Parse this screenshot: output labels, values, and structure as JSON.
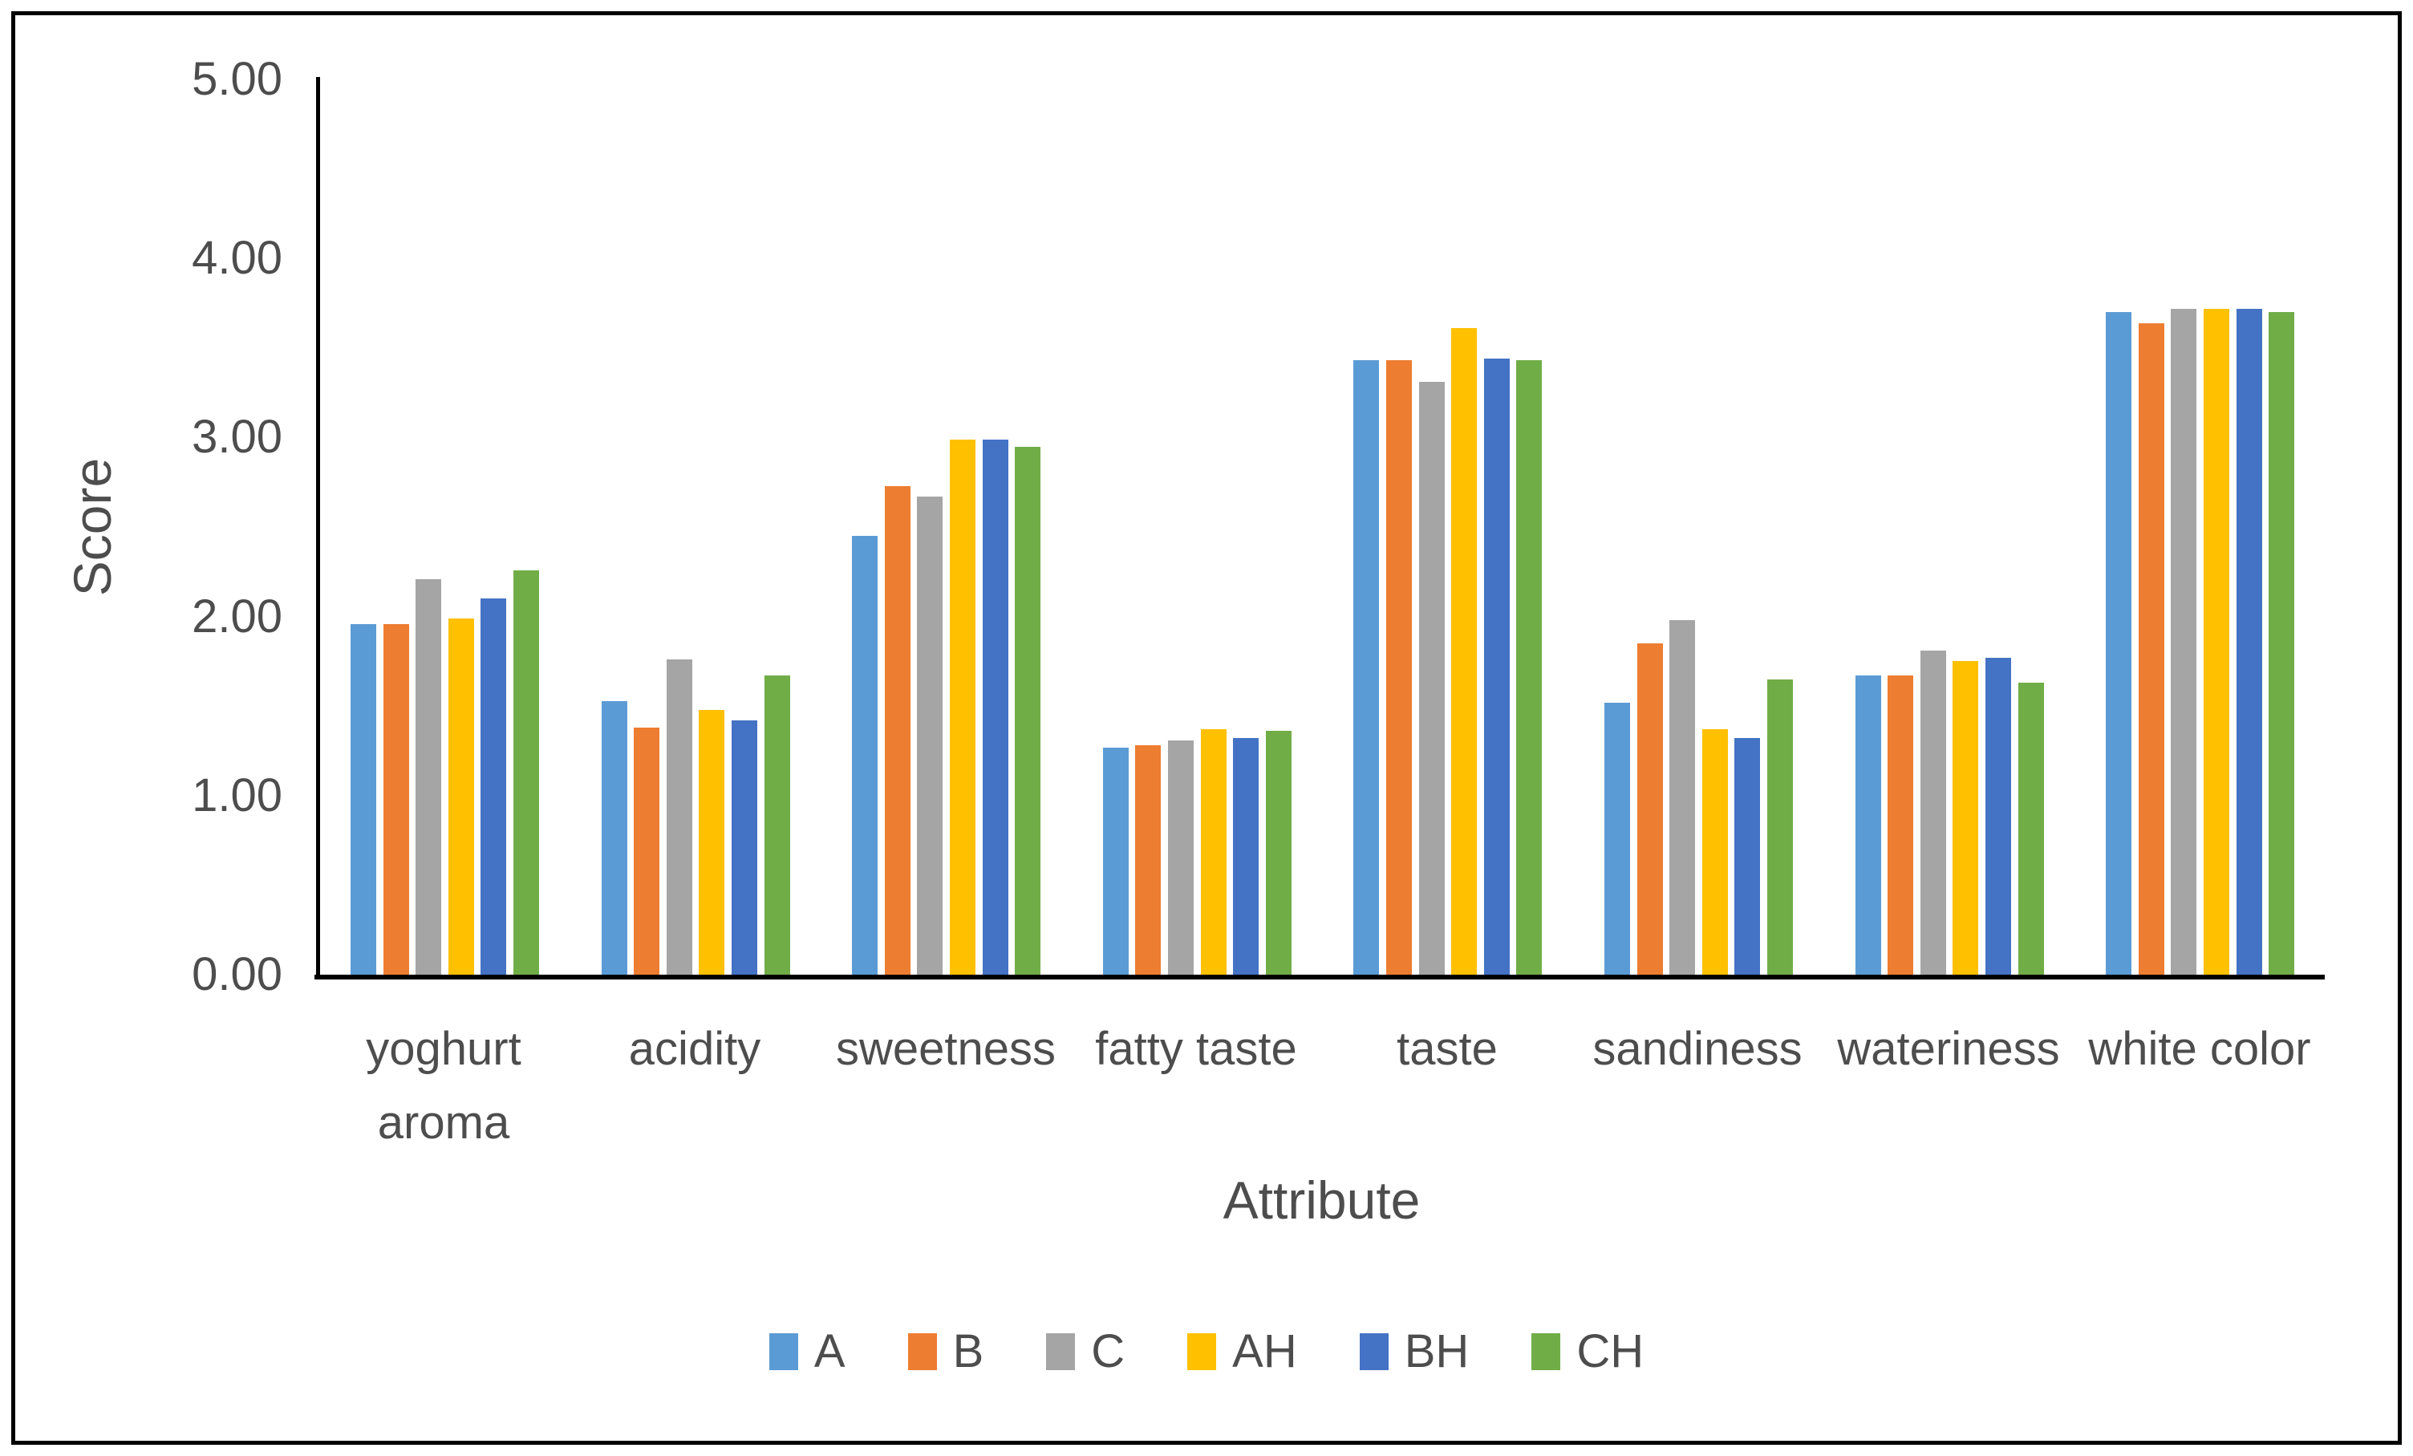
{
  "figure": {
    "background": "#ffffff",
    "border_color": "#000000",
    "text_color": "#4d4d4d",
    "axis_color": "#000000"
  },
  "chart_data": {
    "type": "bar",
    "title": "",
    "xlabel": "Attribute",
    "ylabel": "Score",
    "ylim": [
      0,
      5
    ],
    "ytick_step": 1.0,
    "ytick_labels": [
      "0.00",
      "1.00",
      "2.00",
      "3.00",
      "4.00",
      "5.00"
    ],
    "grid": false,
    "legend_position": "bottom",
    "categories": [
      {
        "label": "yoghurt aroma",
        "wrap": true
      },
      {
        "label": "acidity",
        "wrap": false
      },
      {
        "label": "sweetness",
        "wrap": false
      },
      {
        "label": "fatty taste",
        "wrap": false
      },
      {
        "label": "taste",
        "wrap": false
      },
      {
        "label": "sandiness",
        "wrap": false
      },
      {
        "label": "wateriness",
        "wrap": false
      },
      {
        "label": "white color",
        "wrap": false
      }
    ],
    "series": [
      {
        "name": "A",
        "color": "#5B9BD5",
        "values": [
          1.96,
          1.53,
          2.45,
          1.27,
          3.43,
          1.52,
          1.67,
          3.7
        ]
      },
      {
        "name": "B",
        "color": "#ED7D31",
        "values": [
          1.96,
          1.38,
          2.73,
          1.28,
          3.43,
          1.85,
          1.67,
          3.64
        ]
      },
      {
        "name": "C",
        "color": "#A5A5A5",
        "values": [
          2.21,
          1.76,
          2.67,
          1.31,
          3.31,
          1.98,
          1.81,
          3.72
        ]
      },
      {
        "name": "AH",
        "color": "#FFC000",
        "values": [
          1.99,
          1.48,
          2.99,
          1.37,
          3.61,
          1.37,
          1.75,
          3.72
        ]
      },
      {
        "name": "BH",
        "color": "#4472C4",
        "values": [
          2.1,
          1.42,
          2.99,
          1.32,
          3.44,
          1.32,
          1.77,
          3.72
        ]
      },
      {
        "name": "CH",
        "color": "#70AD47",
        "values": [
          2.26,
          1.67,
          2.95,
          1.36,
          3.43,
          1.65,
          1.63,
          3.7
        ]
      }
    ]
  }
}
